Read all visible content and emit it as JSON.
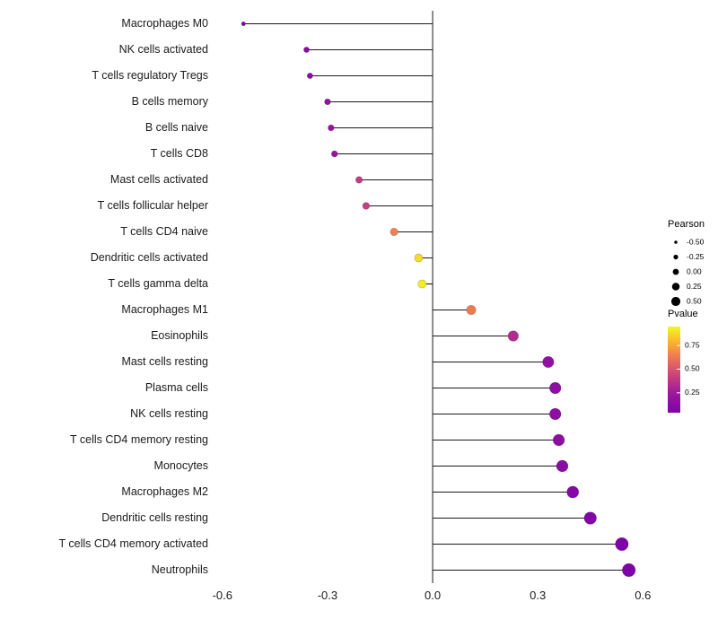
{
  "figure": {
    "background": "#ffffff"
  },
  "chart_data": {
    "type": "lollipop",
    "orientation": "horizontal",
    "title": "",
    "xlabel": "",
    "ylabel": "",
    "grid": false,
    "stem_color": "#1a1a1a",
    "axis_text_color": "#1a1a1a",
    "x_tick_labels": [
      "-0.6",
      "-0.3",
      "0.0",
      "0.3",
      "0.6"
    ],
    "x_tick_values": [
      -0.6,
      -0.3,
      0.0,
      0.3,
      0.6
    ],
    "xlim": [
      -0.62,
      0.63
    ],
    "rows": [
      {
        "label": "Macrophages M0",
        "pearson": -0.54,
        "pvalue": 0.05
      },
      {
        "label": "NK cells activated",
        "pearson": -0.36,
        "pvalue": 0.12
      },
      {
        "label": "T cells regulatory  Tregs",
        "pearson": -0.35,
        "pvalue": 0.13
      },
      {
        "label": "B cells memory",
        "pearson": -0.3,
        "pvalue": 0.2
      },
      {
        "label": "B cells naive",
        "pearson": -0.29,
        "pvalue": 0.21
      },
      {
        "label": "T cells CD8",
        "pearson": -0.28,
        "pvalue": 0.22
      },
      {
        "label": "Mast cells activated",
        "pearson": -0.21,
        "pvalue": 0.4
      },
      {
        "label": "T cells follicular helper",
        "pearson": -0.19,
        "pvalue": 0.42
      },
      {
        "label": "T cells CD4 naive",
        "pearson": -0.11,
        "pvalue": 0.65
      },
      {
        "label": "Dendritic cells activated",
        "pearson": -0.04,
        "pvalue": 0.88
      },
      {
        "label": "T cells gamma delta",
        "pearson": -0.03,
        "pvalue": 0.92
      },
      {
        "label": "Macrophages M1",
        "pearson": 0.11,
        "pvalue": 0.64
      },
      {
        "label": "Eosinophils",
        "pearson": 0.23,
        "pvalue": 0.33
      },
      {
        "label": "Mast cells resting",
        "pearson": 0.33,
        "pvalue": 0.17
      },
      {
        "label": "Plasma cells",
        "pearson": 0.35,
        "pvalue": 0.15
      },
      {
        "label": "NK cells resting",
        "pearson": 0.35,
        "pvalue": 0.15
      },
      {
        "label": "T cells CD4 memory resting",
        "pearson": 0.36,
        "pvalue": 0.14
      },
      {
        "label": "Monocytes",
        "pearson": 0.37,
        "pvalue": 0.13
      },
      {
        "label": "Macrophages M2",
        "pearson": 0.4,
        "pvalue": 0.1
      },
      {
        "label": "Dendritic cells resting",
        "pearson": 0.45,
        "pvalue": 0.07
      },
      {
        "label": "T cells CD4 memory activated",
        "pearson": 0.54,
        "pvalue": 0.05
      },
      {
        "label": "Neutrophils",
        "pearson": 0.56,
        "pvalue": 0.04
      }
    ],
    "size_legend": {
      "title": "Pearson",
      "values": [
        -0.5,
        -0.25,
        0.0,
        0.25,
        0.5
      ],
      "labels": [
        "-0.50",
        "-0.25",
        "0.00",
        "0.25",
        "0.50"
      ],
      "dot_color": "#000000"
    },
    "color_legend": {
      "title": "Pvalue",
      "tick_values": [
        0.75,
        0.5,
        0.25
      ],
      "labels": [
        "0.75",
        "0.50",
        "0.25"
      ],
      "domain": [
        0.04,
        0.95
      ],
      "stops": [
        [
          0.0,
          "#7e03a8"
        ],
        [
          0.22,
          "#9c179e"
        ],
        [
          0.45,
          "#cc4778"
        ],
        [
          0.65,
          "#ed7953"
        ],
        [
          0.82,
          "#fdb32f"
        ],
        [
          1.0,
          "#f0f921"
        ]
      ]
    }
  }
}
